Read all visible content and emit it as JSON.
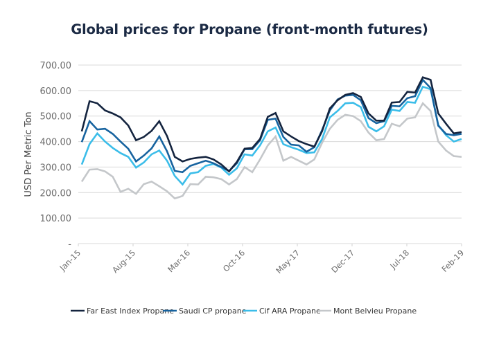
{
  "chart_data": {
    "type": "line",
    "title": "Global prices for Propane (front-month futures)",
    "xlabel": "",
    "ylabel": "USD Per Metric Ton",
    "ylim": [
      0,
      700
    ],
    "yticks": [
      0,
      100,
      200,
      300,
      400,
      500,
      600,
      700
    ],
    "ytick_labels": [
      "-",
      "100.00",
      "200.00",
      "300.00",
      "400.00",
      "500.00",
      "600.00",
      "700.00"
    ],
    "grid": true,
    "legend_position": "bottom",
    "x": [
      "Jan-15",
      "Feb-15",
      "Mar-15",
      "Apr-15",
      "May-15",
      "Jun-15",
      "Jul-15",
      "Aug-15",
      "Sep-15",
      "Oct-15",
      "Nov-15",
      "Dec-15",
      "Jan-16",
      "Feb-16",
      "Mar-16",
      "Apr-16",
      "May-16",
      "Jun-16",
      "Jul-16",
      "Aug-16",
      "Sep-16",
      "Oct-16",
      "Nov-16",
      "Dec-16",
      "Jan-17",
      "Feb-17",
      "Mar-17",
      "Apr-17",
      "May-17",
      "Jun-17",
      "Jul-17",
      "Aug-17",
      "Sep-17",
      "Oct-17",
      "Nov-17",
      "Dec-17",
      "Jan-18",
      "Feb-18",
      "Mar-18",
      "Apr-18",
      "May-18",
      "Jun-18",
      "Jul-18",
      "Aug-18",
      "Sep-18",
      "Oct-18",
      "Nov-18",
      "Dec-18",
      "Jan-19",
      "Feb-19"
    ],
    "xtick_labels": [
      "Jan-15",
      "Aug-15",
      "Mar-16",
      "Oct-16",
      "May-17",
      "Dec-17",
      "Jul-18",
      "Feb-19"
    ],
    "xtick_indices": [
      0,
      7,
      14,
      21,
      28,
      35,
      42,
      49
    ],
    "series": [
      {
        "name": "Far East Index Propane",
        "color": "#14243f",
        "values": [
          440,
          558,
          550,
          522,
          510,
          495,
          463,
          405,
          418,
          442,
          480,
          422,
          340,
          322,
          332,
          337,
          340,
          330,
          310,
          283,
          320,
          372,
          375,
          410,
          497,
          512,
          440,
          420,
          402,
          390,
          380,
          440,
          530,
          562,
          583,
          590,
          575,
          510,
          482,
          482,
          553,
          555,
          595,
          592,
          652,
          642,
          510,
          470,
          432,
          437
        ]
      },
      {
        "name": "Saudi CP propane",
        "color": "#17639f",
        "values": [
          398,
          480,
          447,
          450,
          430,
          400,
          372,
          322,
          345,
          373,
          420,
          362,
          285,
          280,
          305,
          315,
          325,
          315,
          300,
          285,
          315,
          370,
          370,
          405,
          485,
          490,
          418,
          388,
          385,
          360,
          378,
          445,
          522,
          565,
          580,
          583,
          562,
          492,
          472,
          480,
          540,
          538,
          570,
          578,
          642,
          610,
          462,
          430,
          425,
          430
        ]
      },
      {
        "name": "Cif ARA Propane",
        "color": "#3bbde9",
        "values": [
          310,
          390,
          432,
          400,
          375,
          355,
          340,
          298,
          318,
          350,
          365,
          325,
          265,
          232,
          275,
          280,
          305,
          312,
          298,
          270,
          295,
          350,
          345,
          385,
          440,
          455,
          390,
          378,
          368,
          355,
          358,
          410,
          495,
          520,
          550,
          552,
          535,
          458,
          440,
          460,
          525,
          520,
          555,
          552,
          615,
          605,
          465,
          425,
          400,
          410
        ]
      },
      {
        "name": "Mont Belvieu Propane",
        "color": "#c4c7ca",
        "values": [
          243,
          290,
          292,
          283,
          262,
          203,
          215,
          195,
          233,
          243,
          225,
          205,
          177,
          187,
          233,
          232,
          262,
          260,
          253,
          232,
          253,
          300,
          280,
          330,
          385,
          420,
          325,
          340,
          325,
          310,
          330,
          395,
          450,
          485,
          505,
          500,
          480,
          435,
          405,
          410,
          470,
          460,
          490,
          495,
          550,
          520,
          400,
          365,
          343,
          340
        ]
      }
    ]
  }
}
